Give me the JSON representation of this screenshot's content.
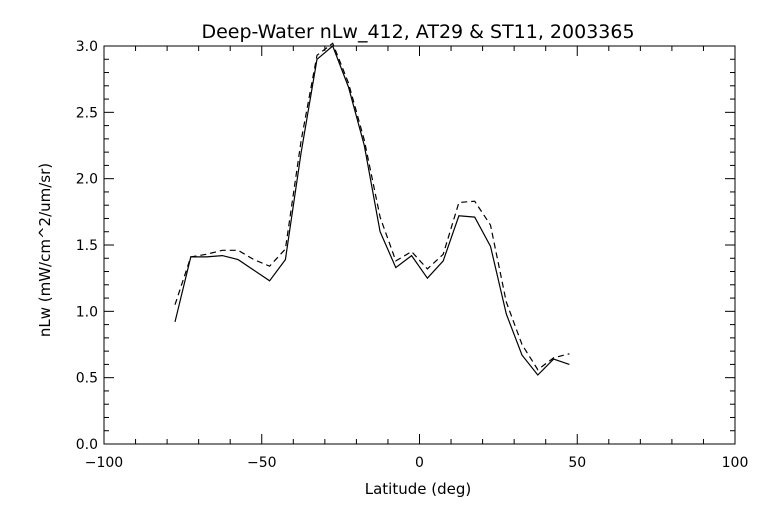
{
  "chart_data": {
    "type": "line",
    "title": "Deep-Water nLw_412, AT29 & ST11, 2003365",
    "xlabel": "Latitude (deg)",
    "ylabel": "nLw (mW/cm^2/um/sr)",
    "xlim": [
      -100,
      100
    ],
    "ylim": [
      0.0,
      3.0
    ],
    "xticks": [
      -100,
      -50,
      0,
      50,
      100
    ],
    "xtick_labels": [
      "−100",
      "−50",
      "0",
      "50",
      "100"
    ],
    "yticks": [
      0.0,
      0.5,
      1.0,
      1.5,
      2.0,
      2.5,
      3.0
    ],
    "ytick_labels": [
      "0.0",
      "0.5",
      "1.0",
      "1.5",
      "2.0",
      "2.5",
      "3.0"
    ],
    "grid": false,
    "series": [
      {
        "style": "solid",
        "x": [
          -77.5,
          -72.5,
          -67.5,
          -62.5,
          -57.5,
          -52.5,
          -47.5,
          -42.5,
          -37.5,
          -32.5,
          -27.5,
          -22.5,
          -17.5,
          -12.5,
          -7.5,
          -2.5,
          2.5,
          7.5,
          12.5,
          17.5,
          22.5,
          27.5,
          32.5,
          37.5,
          42.5,
          47.5
        ],
        "y": [
          0.92,
          1.41,
          1.41,
          1.42,
          1.39,
          1.31,
          1.23,
          1.39,
          2.2,
          2.9,
          3.0,
          2.69,
          2.25,
          1.6,
          1.33,
          1.42,
          1.25,
          1.38,
          1.72,
          1.71,
          1.49,
          0.98,
          0.67,
          0.52,
          0.64,
          0.6
        ]
      },
      {
        "style": "dashed",
        "x": [
          -77.5,
          -72.5,
          -67.5,
          -62.5,
          -57.5,
          -52.5,
          -47.5,
          -42.5,
          -37.5,
          -32.5,
          -27.5,
          -22.5,
          -17.5,
          -12.5,
          -7.5,
          -2.5,
          2.5,
          7.5,
          12.5,
          17.5,
          22.5,
          27.5,
          32.5,
          37.5,
          42.5,
          47.5
        ],
        "y": [
          1.05,
          1.41,
          1.43,
          1.46,
          1.46,
          1.39,
          1.34,
          1.47,
          2.29,
          2.93,
          3.02,
          2.72,
          2.29,
          1.71,
          1.38,
          1.45,
          1.32,
          1.43,
          1.82,
          1.83,
          1.65,
          1.07,
          0.75,
          0.56,
          0.65,
          0.68
        ]
      }
    ]
  }
}
